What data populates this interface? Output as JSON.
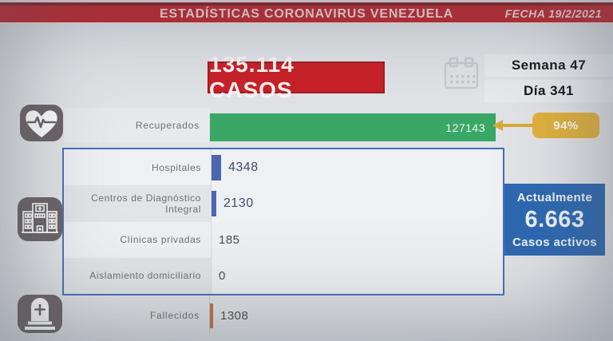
{
  "banner": {
    "title": "ESTADÍSTICAS CORONAVIRUS VENEZUELA",
    "date": "FECHA 19/2/2021"
  },
  "totals": {
    "cases": "135.114 CASOS",
    "week": "Semana 47",
    "day": "Día 341"
  },
  "recovered": {
    "label": "Recuperados",
    "value": 127143,
    "pct": "94%"
  },
  "rows": [
    {
      "label": "Hospitales",
      "value": 4348
    },
    {
      "label": "Centros de Diagnóstico Integral",
      "value": 2130
    },
    {
      "label": "Clínicas privadas",
      "value": 185
    },
    {
      "label": "Aislamiento domiciliario",
      "value": 0
    }
  ],
  "deaths": {
    "label": "Fallecidos",
    "value": 1308
  },
  "active": {
    "line1": "Actualmente",
    "value": "6.663",
    "line2": "Casos activos"
  },
  "colors": {
    "banner_red": "#c2242c",
    "cases_red": "#ca2027",
    "green": "#3aa767",
    "yellow": "#e2b13c",
    "blue_bar": "#4b66ae",
    "blue_frame": "#4a6eb5",
    "blue_active": "#2d68b1",
    "orange": "#bf6e3e",
    "icon_gray": "#6b6366"
  },
  "chart_data": {
    "type": "bar",
    "orientation": "horizontal",
    "title": "ESTADÍSTICAS CORONAVIRUS VENEZUELA",
    "subtitle": "FECHA 19/2/2021",
    "total_label": "135.114 CASOS",
    "week_label": "Semana 47",
    "day_label": "Día 341",
    "categories": [
      "Recuperados",
      "Hospitales",
      "Centros de Diagnóstico Integral",
      "Clínicas privadas",
      "Aislamiento domiciliario",
      "Fallecidos"
    ],
    "values": [
      127143,
      4348,
      2130,
      185,
      0,
      1308
    ],
    "bar_colors": [
      "#3aa767",
      "#4b66ae",
      "#4b66ae",
      "none",
      "none",
      "#bf6e3e"
    ],
    "recovered_percent": "94%",
    "active_cases": 6663,
    "annotations": [
      "Actualmente 6.663 Casos activos"
    ],
    "xlim": [
      0,
      127143
    ],
    "grid": false,
    "legend": false
  }
}
